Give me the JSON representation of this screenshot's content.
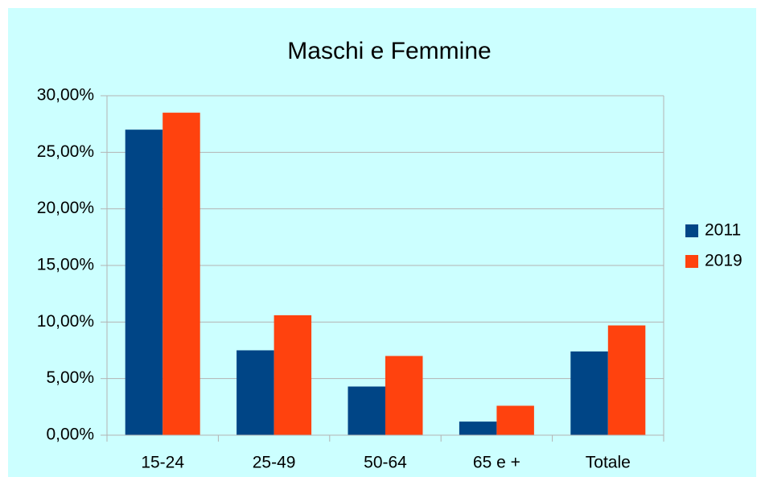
{
  "chart_data": {
    "type": "bar",
    "title": "Maschi e Femmine",
    "categories": [
      "15-24",
      "25-49",
      "50-64",
      "65 e +",
      "Totale"
    ],
    "series": [
      {
        "name": "2011",
        "color": "#004586",
        "values": [
          27.0,
          7.5,
          4.3,
          1.2,
          7.4
        ]
      },
      {
        "name": "2019",
        "color": "#ff420e",
        "values": [
          28.5,
          10.6,
          7.0,
          2.6,
          9.7
        ]
      }
    ],
    "ylim": [
      0,
      30
    ],
    "yticks": [
      {
        "value": 0,
        "label": "0,00%"
      },
      {
        "value": 5,
        "label": "5,00%"
      },
      {
        "value": 10,
        "label": "10,00%"
      },
      {
        "value": 15,
        "label": "15,00%"
      },
      {
        "value": 20,
        "label": "20,00%"
      },
      {
        "value": 25,
        "label": "25,00%"
      },
      {
        "value": 30,
        "label": "30,00%"
      }
    ],
    "grid": true,
    "legend": "right"
  }
}
